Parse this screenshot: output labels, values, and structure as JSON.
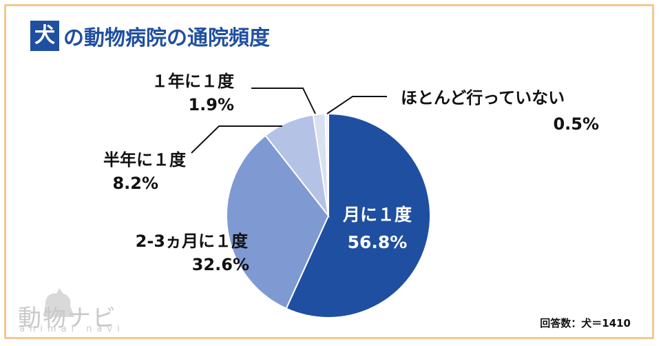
{
  "title": {
    "badge": "犬",
    "text": "の動物病院の通院頻度"
  },
  "note": "回答数：犬＝1410",
  "logo": {
    "main": "動物ナビ",
    "sub": "animal navi"
  },
  "colors": {
    "accent": "#1f4fa0",
    "frame": "#f2c98a"
  },
  "chart_data": {
    "type": "pie",
    "start": "12 o'clock",
    "direction": "clockwise",
    "slices": [
      {
        "label": "月に１度",
        "value": 56.8,
        "value_text": "56.8%",
        "color": "#1f4fa0"
      },
      {
        "label": "2-3ヵ月に１度",
        "value": 32.6,
        "value_text": "32.6%",
        "color": "#7f9ad2"
      },
      {
        "label": "半年に１度",
        "value": 8.2,
        "value_text": "8.2%",
        "color": "#b4c2e6"
      },
      {
        "label": "１年に１度",
        "value": 1.9,
        "value_text": "1.9%",
        "color": "#d8e0f1"
      },
      {
        "label": "ほとんど行っていない",
        "value": 0.5,
        "value_text": "0.5%",
        "color": "#eef2fa"
      }
    ]
  }
}
